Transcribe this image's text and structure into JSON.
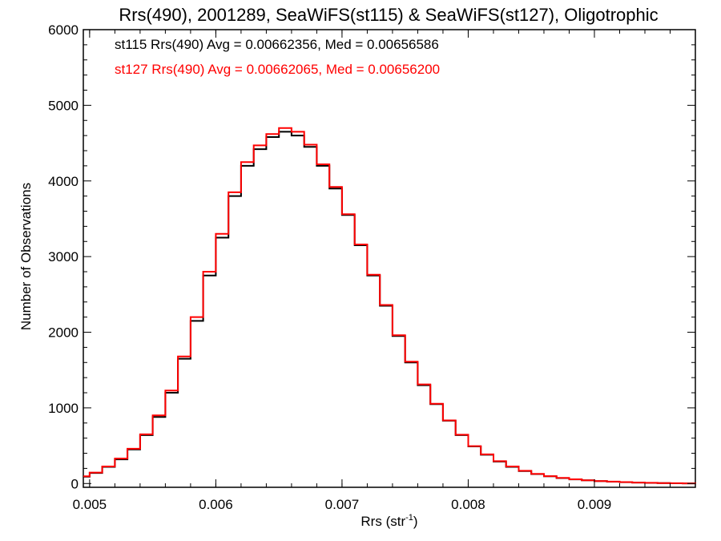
{
  "chart_data": {
    "type": "line",
    "title": "Rrs(490), 2001289, SeaWiFS(st115) & SeaWiFS(st127), Oligotrophic",
    "xlabel_base": "Rrs (str",
    "xlabel_sup": "-1",
    "xlabel_close": ")",
    "ylabel": "Number of Observations",
    "xlim": [
      0.00495,
      0.0098
    ],
    "ylim": [
      -50,
      6000
    ],
    "xticks": [
      {
        "value": 0.005,
        "label": "0.005"
      },
      {
        "value": 0.006,
        "label": "0.006"
      },
      {
        "value": 0.007,
        "label": "0.007"
      },
      {
        "value": 0.008,
        "label": "0.008"
      },
      {
        "value": 0.009,
        "label": "0.009"
      }
    ],
    "yticks": [
      {
        "value": 0,
        "label": "0"
      },
      {
        "value": 1000,
        "label": "1000"
      },
      {
        "value": 2000,
        "label": "2000"
      },
      {
        "value": 3000,
        "label": "3000"
      },
      {
        "value": 4000,
        "label": "4000"
      },
      {
        "value": 5000,
        "label": "5000"
      },
      {
        "value": 6000,
        "label": "6000"
      }
    ],
    "annotations": [
      {
        "text": "st115 Rrs(490) Avg = 0.00662356, Med = 0.00656586",
        "color": "#000000"
      },
      {
        "text": "st127 Rrs(490) Avg = 0.00662065, Med = 0.00656200",
        "color": "#ff0000"
      }
    ],
    "series": [
      {
        "color": "#000000",
        "x": [
          0.00495,
          0.005,
          0.0051,
          0.0052,
          0.0053,
          0.0054,
          0.0055,
          0.0056,
          0.0057,
          0.0058,
          0.0059,
          0.006,
          0.0061,
          0.0062,
          0.0063,
          0.0064,
          0.0065,
          0.0066,
          0.0067,
          0.0068,
          0.0069,
          0.007,
          0.0071,
          0.0072,
          0.0073,
          0.0074,
          0.0075,
          0.0076,
          0.0077,
          0.0078,
          0.0079,
          0.008,
          0.0081,
          0.0082,
          0.0083,
          0.0084,
          0.0085,
          0.0086,
          0.0087,
          0.0088,
          0.0089,
          0.009,
          0.0091,
          0.0092,
          0.0093,
          0.0094,
          0.0095,
          0.0096,
          0.0097,
          0.0098
        ],
        "values": [
          90,
          140,
          220,
          320,
          450,
          640,
          880,
          1200,
          1650,
          2150,
          2750,
          3250,
          3800,
          4200,
          4420,
          4580,
          4650,
          4600,
          4450,
          4200,
          3900,
          3550,
          3150,
          2750,
          2350,
          1950,
          1600,
          1300,
          1050,
          830,
          640,
          490,
          380,
          290,
          220,
          165,
          125,
          95,
          72,
          55,
          42,
          32,
          24,
          18,
          12,
          8,
          5,
          3,
          2,
          1
        ]
      },
      {
        "color": "#ff0000",
        "x": [
          0.00495,
          0.005,
          0.0051,
          0.0052,
          0.0053,
          0.0054,
          0.0055,
          0.0056,
          0.0057,
          0.0058,
          0.0059,
          0.006,
          0.0061,
          0.0062,
          0.0063,
          0.0064,
          0.0065,
          0.0066,
          0.0067,
          0.0068,
          0.0069,
          0.007,
          0.0071,
          0.0072,
          0.0073,
          0.0074,
          0.0075,
          0.0076,
          0.0077,
          0.0078,
          0.0079,
          0.008,
          0.0081,
          0.0082,
          0.0083,
          0.0084,
          0.0085,
          0.0086,
          0.0087,
          0.0088,
          0.0089,
          0.009,
          0.0091,
          0.0092,
          0.0093,
          0.0094,
          0.0095,
          0.0096,
          0.0097,
          0.0098
        ],
        "values": [
          95,
          145,
          225,
          330,
          460,
          650,
          900,
          1230,
          1680,
          2200,
          2800,
          3300,
          3850,
          4250,
          4470,
          4620,
          4700,
          4650,
          4480,
          4220,
          3920,
          3560,
          3160,
          2760,
          2360,
          1960,
          1610,
          1310,
          1055,
          835,
          645,
          495,
          385,
          295,
          225,
          168,
          128,
          97,
          74,
          56,
          43,
          33,
          25,
          19,
          13,
          9,
          6,
          4,
          2,
          1
        ]
      }
    ]
  }
}
